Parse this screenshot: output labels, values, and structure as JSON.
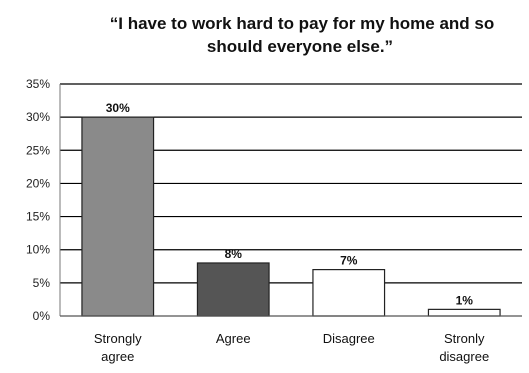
{
  "chart_data": {
    "type": "bar",
    "title_lines": [
      "“I have to work hard to pay for my home and so",
      "should everyone else.”"
    ],
    "categories": [
      {
        "lines": [
          "Strongly",
          "agree"
        ]
      },
      {
        "lines": [
          "Agree"
        ]
      },
      {
        "lines": [
          "Disagree"
        ]
      },
      {
        "lines": [
          "Stronly",
          "disagree"
        ]
      }
    ],
    "values": [
      30,
      8,
      7,
      1
    ],
    "data_labels": [
      "30%",
      "8%",
      "7%",
      "1%"
    ],
    "ylim": [
      0,
      35
    ],
    "yticks": [
      0,
      5,
      10,
      15,
      20,
      25,
      30,
      35
    ],
    "ytick_labels": [
      "0%",
      "5%",
      "10%",
      "15%",
      "20%",
      "25%",
      "30%",
      "35%"
    ],
    "grid": true,
    "bar_colors": [
      "#8a8a8a",
      "#555555",
      "#ffffff",
      "#ffffff"
    ]
  }
}
